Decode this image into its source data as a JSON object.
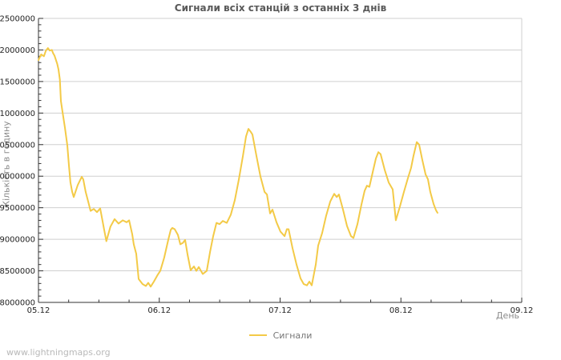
{
  "footer": {
    "watermark": "www.lightningmaps.org"
  },
  "colors": {
    "line": "#f3ca47",
    "grid": "#cfcfcf",
    "axis": "#333333",
    "tick_text": "#222222",
    "title_text": "#595959",
    "muted_text": "#8a8a8a",
    "watermark_text": "#b9b9b9"
  },
  "chart_data": {
    "type": "line",
    "title": "Сигнали всіх станцій з останніх 3 днів",
    "xlabel": "День",
    "ylabel": "Кількість в годину",
    "grid": "horizontal-only",
    "legend_position": "bottom-center",
    "ylim": [
      8000000,
      12500000
    ],
    "xlim_days": [
      0,
      4
    ],
    "y_ticks": [
      8000000,
      8500000,
      9000000,
      9500000,
      10000000,
      10500000,
      11000000,
      11500000,
      12000000,
      12500000
    ],
    "y_minor_step": 100000,
    "x_minor_step_days": 0.25,
    "x_tick_labels": [
      "05.12",
      "06.12",
      "07.12",
      "08.12",
      "09.12"
    ],
    "series": [
      {
        "name": "Сигнали",
        "color": "#f3ca47",
        "points": [
          [
            0.0,
            11840000
          ],
          [
            0.022,
            11930000
          ],
          [
            0.045,
            11900000
          ],
          [
            0.062,
            11990000
          ],
          [
            0.078,
            12030000
          ],
          [
            0.093,
            11990000
          ],
          [
            0.111,
            12000000
          ],
          [
            0.121,
            11950000
          ],
          [
            0.133,
            11910000
          ],
          [
            0.155,
            11780000
          ],
          [
            0.166,
            11690000
          ],
          [
            0.177,
            11530000
          ],
          [
            0.186,
            11190000
          ],
          [
            0.199,
            11020000
          ],
          [
            0.219,
            10770000
          ],
          [
            0.239,
            10490000
          ],
          [
            0.252,
            10170000
          ],
          [
            0.265,
            9900000
          ],
          [
            0.279,
            9750000
          ],
          [
            0.292,
            9670000
          ],
          [
            0.325,
            9860000
          ],
          [
            0.358,
            9990000
          ],
          [
            0.371,
            9950000
          ],
          [
            0.391,
            9750000
          ],
          [
            0.418,
            9550000
          ],
          [
            0.431,
            9450000
          ],
          [
            0.458,
            9480000
          ],
          [
            0.484,
            9430000
          ],
          [
            0.511,
            9490000
          ],
          [
            0.544,
            9150000
          ],
          [
            0.562,
            8970000
          ],
          [
            0.596,
            9200000
          ],
          [
            0.63,
            9320000
          ],
          [
            0.663,
            9250000
          ],
          [
            0.697,
            9300000
          ],
          [
            0.73,
            9270000
          ],
          [
            0.75,
            9300000
          ],
          [
            0.776,
            9080000
          ],
          [
            0.789,
            8920000
          ],
          [
            0.809,
            8770000
          ],
          [
            0.829,
            8370000
          ],
          [
            0.862,
            8290000
          ],
          [
            0.889,
            8260000
          ],
          [
            0.909,
            8310000
          ],
          [
            0.929,
            8250000
          ],
          [
            0.955,
            8330000
          ],
          [
            0.988,
            8440000
          ],
          [
            1.008,
            8500000
          ],
          [
            1.041,
            8710000
          ],
          [
            1.075,
            9000000
          ],
          [
            1.095,
            9150000
          ],
          [
            1.108,
            9180000
          ],
          [
            1.128,
            9160000
          ],
          [
            1.154,
            9070000
          ],
          [
            1.174,
            8920000
          ],
          [
            1.194,
            8940000
          ],
          [
            1.214,
            8990000
          ],
          [
            1.234,
            8760000
          ],
          [
            1.26,
            8510000
          ],
          [
            1.287,
            8570000
          ],
          [
            1.307,
            8500000
          ],
          [
            1.327,
            8560000
          ],
          [
            1.36,
            8450000
          ],
          [
            1.393,
            8500000
          ],
          [
            1.42,
            8800000
          ],
          [
            1.446,
            9050000
          ],
          [
            1.473,
            9260000
          ],
          [
            1.499,
            9240000
          ],
          [
            1.526,
            9290000
          ],
          [
            1.559,
            9260000
          ],
          [
            1.592,
            9390000
          ],
          [
            1.625,
            9620000
          ],
          [
            1.658,
            9940000
          ],
          [
            1.692,
            10320000
          ],
          [
            1.718,
            10630000
          ],
          [
            1.738,
            10750000
          ],
          [
            1.758,
            10700000
          ],
          [
            1.771,
            10660000
          ],
          [
            1.804,
            10320000
          ],
          [
            1.837,
            10000000
          ],
          [
            1.871,
            9750000
          ],
          [
            1.891,
            9710000
          ],
          [
            1.917,
            9410000
          ],
          [
            1.937,
            9470000
          ],
          [
            1.97,
            9270000
          ],
          [
            2.003,
            9120000
          ],
          [
            2.037,
            9050000
          ],
          [
            2.056,
            9160000
          ],
          [
            2.07,
            9160000
          ],
          [
            2.103,
            8860000
          ],
          [
            2.136,
            8600000
          ],
          [
            2.169,
            8380000
          ],
          [
            2.196,
            8290000
          ],
          [
            2.222,
            8270000
          ],
          [
            2.242,
            8330000
          ],
          [
            2.262,
            8270000
          ],
          [
            2.295,
            8600000
          ],
          [
            2.315,
            8900000
          ],
          [
            2.348,
            9100000
          ],
          [
            2.381,
            9370000
          ],
          [
            2.415,
            9600000
          ],
          [
            2.448,
            9720000
          ],
          [
            2.468,
            9670000
          ],
          [
            2.487,
            9710000
          ],
          [
            2.521,
            9470000
          ],
          [
            2.554,
            9210000
          ],
          [
            2.587,
            9050000
          ],
          [
            2.607,
            9020000
          ],
          [
            2.64,
            9240000
          ],
          [
            2.673,
            9550000
          ],
          [
            2.7,
            9770000
          ],
          [
            2.719,
            9850000
          ],
          [
            2.739,
            9830000
          ],
          [
            2.766,
            10060000
          ],
          [
            2.793,
            10280000
          ],
          [
            2.813,
            10380000
          ],
          [
            2.832,
            10350000
          ],
          [
            2.866,
            10100000
          ],
          [
            2.899,
            9900000
          ],
          [
            2.932,
            9790000
          ],
          [
            2.958,
            9300000
          ],
          [
            2.992,
            9520000
          ],
          [
            3.025,
            9750000
          ],
          [
            3.058,
            9970000
          ],
          [
            3.084,
            10130000
          ],
          [
            3.104,
            10320000
          ],
          [
            3.131,
            10540000
          ],
          [
            3.151,
            10500000
          ],
          [
            3.177,
            10260000
          ],
          [
            3.204,
            10030000
          ],
          [
            3.224,
            9950000
          ],
          [
            3.243,
            9750000
          ],
          [
            3.27,
            9560000
          ],
          [
            3.29,
            9460000
          ],
          [
            3.303,
            9420000
          ]
        ]
      }
    ]
  }
}
